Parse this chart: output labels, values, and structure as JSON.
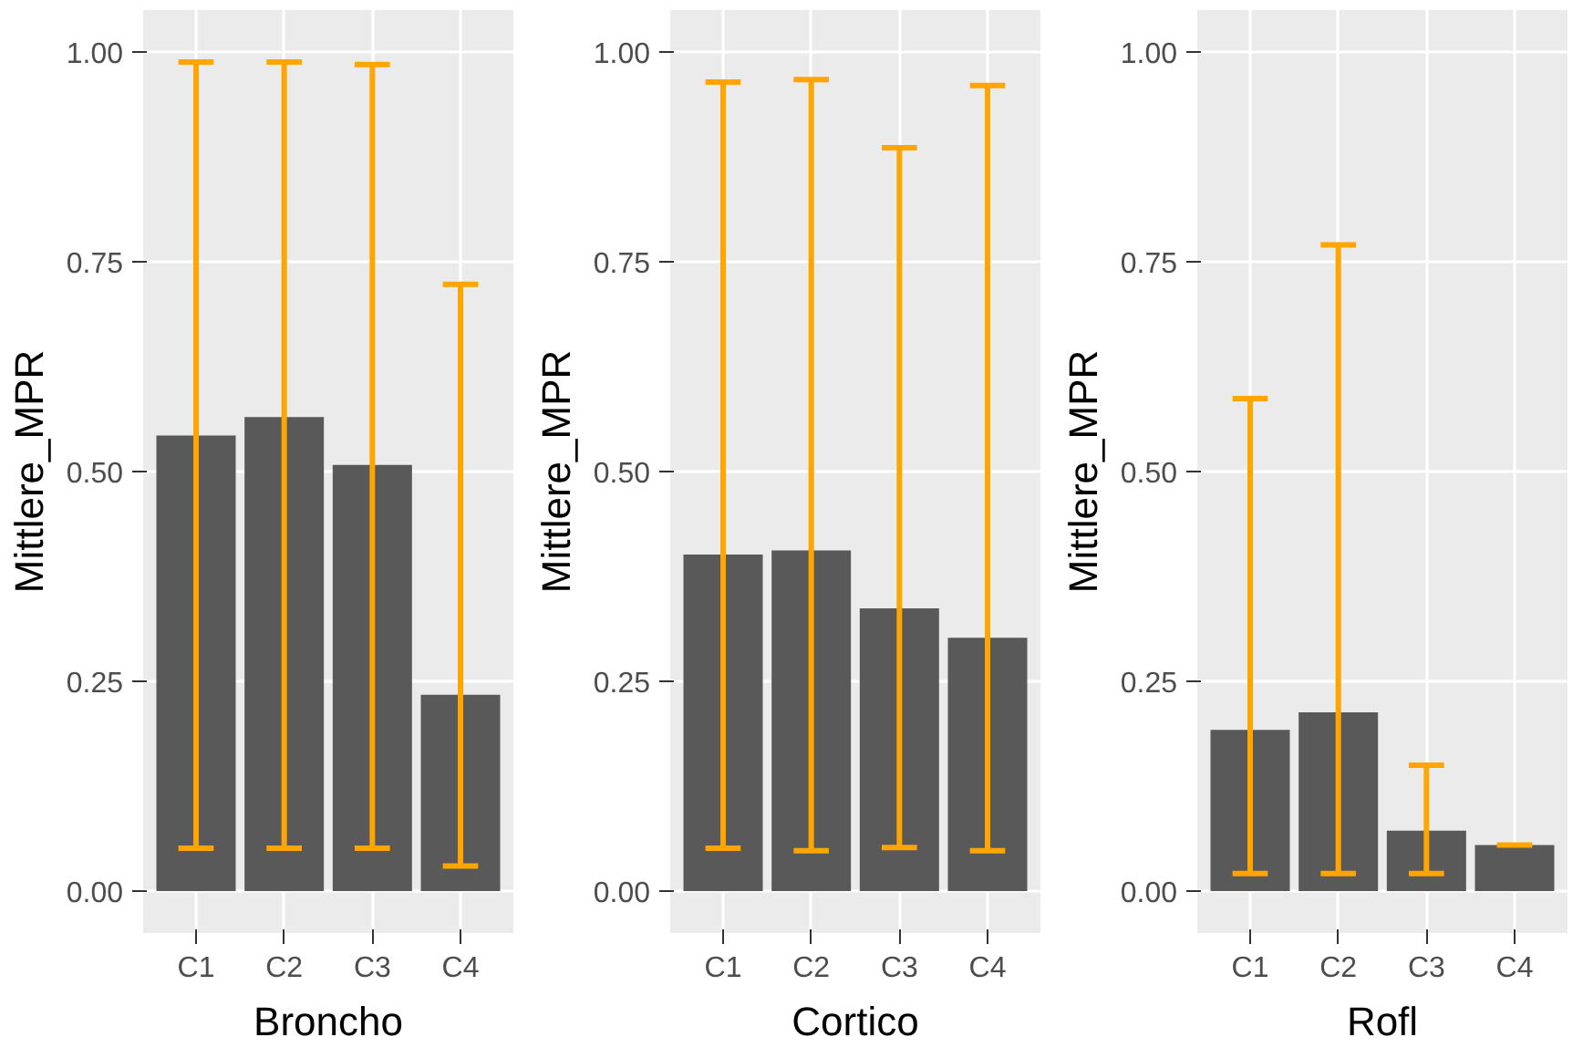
{
  "chart_data": [
    {
      "type": "bar",
      "xlabel": "Broncho",
      "ylabel": "Mittlere_MPR",
      "categories": [
        "C1",
        "C2",
        "C3",
        "C4"
      ],
      "values": [
        0.543,
        0.565,
        0.508,
        0.234
      ],
      "errors": [
        [
          0.051,
          0.988
        ],
        [
          0.051,
          0.988
        ],
        [
          0.051,
          0.985
        ],
        [
          0.03,
          0.723
        ]
      ],
      "color": "#595959",
      "ylim": [
        -0.05,
        1.05
      ],
      "yticks": [
        {
          "value": 0,
          "label": "0.00"
        },
        {
          "value": 0.25,
          "label": "0.25"
        },
        {
          "value": 0.5,
          "label": "0.50"
        },
        {
          "value": 0.75,
          "label": "0.75"
        },
        {
          "value": 1,
          "label": "1.00"
        }
      ],
      "grid": true
    },
    {
      "type": "bar",
      "xlabel": "Cortico",
      "ylabel": "Mittlere_MPR",
      "categories": [
        "C1",
        "C2",
        "C3",
        "C4"
      ],
      "values": [
        0.401,
        0.406,
        0.337,
        0.302
      ],
      "errors": [
        [
          0.051,
          0.964
        ],
        [
          0.048,
          0.967
        ],
        [
          0.052,
          0.886
        ],
        [
          0.048,
          0.96
        ]
      ],
      "color": "#595959",
      "ylim": [
        -0.05,
        1.05
      ],
      "yticks": [
        {
          "value": 0,
          "label": "0.00"
        },
        {
          "value": 0.25,
          "label": "0.25"
        },
        {
          "value": 0.5,
          "label": "0.50"
        },
        {
          "value": 0.75,
          "label": "0.75"
        },
        {
          "value": 1,
          "label": "1.00"
        }
      ],
      "grid": true
    },
    {
      "type": "bar",
      "xlabel": "Rofl",
      "ylabel": "Mittlere_MPR",
      "categories": [
        "C1",
        "C2",
        "C3",
        "C4"
      ],
      "values": [
        0.192,
        0.213,
        0.072,
        0.055
      ],
      "errors": [
        [
          0.021,
          0.587
        ],
        [
          0.021,
          0.77
        ],
        [
          0.021,
          0.15
        ],
        [
          0.055,
          0.055
        ]
      ],
      "color": "#595959",
      "ylim": [
        -0.05,
        1.05
      ],
      "yticks": [
        {
          "value": 0,
          "label": "0.00"
        },
        {
          "value": 0.25,
          "label": "0.25"
        },
        {
          "value": 0.5,
          "label": "0.50"
        },
        {
          "value": 0.75,
          "label": "0.75"
        },
        {
          "value": 1,
          "label": "1.00"
        }
      ],
      "grid": true
    }
  ]
}
